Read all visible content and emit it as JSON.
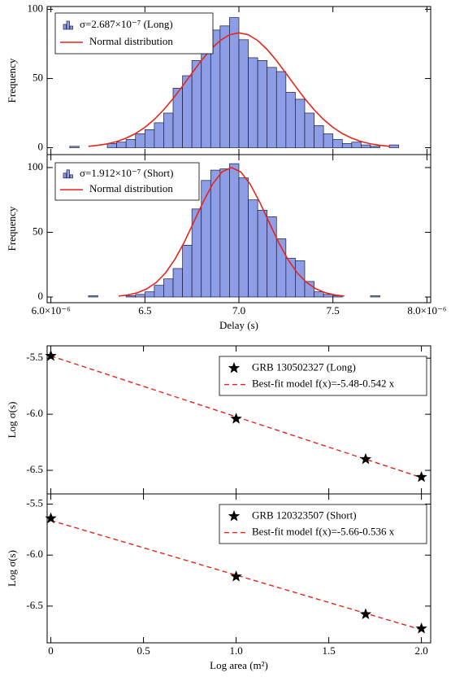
{
  "chart_data": [
    {
      "type": "histogram",
      "name": "σ=2.687×10⁻⁷ (Long)",
      "color": "#8e9ee6",
      "ylabel": "Frequency",
      "bins": [
        6.1e-06,
        6.15e-06,
        6.2e-06,
        6.25e-06,
        6.3e-06,
        6.35e-06,
        6.4e-06,
        6.45e-06,
        6.5e-06,
        6.55e-06,
        6.6e-06,
        6.65e-06,
        6.7e-06,
        6.75e-06,
        6.8e-06,
        6.85e-06,
        6.9e-06,
        6.95e-06,
        7e-06,
        7.05e-06,
        7.1e-06,
        7.15e-06,
        7.2e-06,
        7.25e-06,
        7.3e-06,
        7.35e-06,
        7.4e-06,
        7.45e-06,
        7.5e-06,
        7.55e-06,
        7.6e-06,
        7.65e-06,
        7.7e-06,
        7.75e-06,
        7.8e-06,
        7.85e-06,
        7.9e-06
      ],
      "values": [
        1,
        0,
        0,
        0,
        3,
        4,
        6,
        10,
        13,
        18,
        25,
        43,
        52,
        63,
        72,
        85,
        88,
        94,
        78,
        65,
        63,
        58,
        55,
        40,
        35,
        25,
        16,
        10,
        6,
        3,
        4,
        2,
        1,
        0,
        2,
        0
      ],
      "curve": {
        "name": "Normal distribution",
        "color": "#e3261b",
        "x": [
          6.2e-06,
          6.25e-06,
          6.3e-06,
          6.35e-06,
          6.4e-06,
          6.45e-06,
          6.5e-06,
          6.55e-06,
          6.6e-06,
          6.65e-06,
          6.7e-06,
          6.75e-06,
          6.8e-06,
          6.85e-06,
          6.9e-06,
          6.95e-06,
          7e-06,
          7.05e-06,
          7.1e-06,
          7.15e-06,
          7.2e-06,
          7.25e-06,
          7.3e-06,
          7.35e-06,
          7.4e-06,
          7.45e-06,
          7.5e-06,
          7.55e-06,
          7.6e-06,
          7.65e-06,
          7.7e-06,
          7.75e-06,
          7.8e-06
        ],
        "values": [
          1.0,
          1.7,
          2.8,
          4.4,
          6.9,
          10.2,
          14.7,
          20.4,
          27.4,
          35.5,
          44.5,
          53.8,
          62.9,
          71.0,
          77.4,
          81.6,
          83,
          81.6,
          77.4,
          71.0,
          62.9,
          53.8,
          44.5,
          35.5,
          27.4,
          20.4,
          14.7,
          10.2,
          6.9,
          4.4,
          2.8,
          1.7,
          1.0
        ]
      },
      "xlim": [
        5.98e-06,
        8.02e-06
      ],
      "xticks": [
        6e-06,
        6.5e-06,
        7e-06,
        7.5e-06,
        8e-06
      ],
      "ylim": [
        -5,
        102
      ],
      "yticks": [
        0,
        50,
        100
      ]
    },
    {
      "type": "histogram",
      "name": "σ=1.912×10⁻⁷ (Short)",
      "color": "#8e9ee6",
      "ylabel": "Frequency",
      "xlabel": "Delay (s)",
      "bins": [
        6.2e-06,
        6.25e-06,
        6.3e-06,
        6.35e-06,
        6.4e-06,
        6.45e-06,
        6.5e-06,
        6.55e-06,
        6.6e-06,
        6.65e-06,
        6.7e-06,
        6.75e-06,
        6.8e-06,
        6.85e-06,
        6.9e-06,
        6.95e-06,
        7e-06,
        7.05e-06,
        7.1e-06,
        7.15e-06,
        7.2e-06,
        7.25e-06,
        7.3e-06,
        7.35e-06,
        7.4e-06,
        7.45e-06,
        7.5e-06,
        7.55e-06,
        7.6e-06,
        7.65e-06,
        7.7e-06,
        7.75e-06,
        7.8e-06
      ],
      "values": [
        1,
        0,
        0,
        0,
        1,
        2,
        4,
        9,
        14,
        22,
        40,
        68,
        90,
        98,
        99,
        103,
        92,
        75,
        67,
        62,
        45,
        30,
        28,
        12,
        4,
        2,
        1,
        0,
        0,
        0,
        1,
        0
      ],
      "curve": {
        "name": "Normal distribution",
        "color": "#e3261b",
        "x": [
          6.36e-06,
          6.41e-06,
          6.46e-06,
          6.51e-06,
          6.56e-06,
          6.61e-06,
          6.66e-06,
          6.71e-06,
          6.76e-06,
          6.81e-06,
          6.86e-06,
          6.91e-06,
          6.96e-06,
          7.01e-06,
          7.06e-06,
          7.11e-06,
          7.16e-06,
          7.21e-06,
          7.26e-06,
          7.31e-06,
          7.36e-06,
          7.41e-06,
          7.46e-06,
          7.51e-06,
          7.56e-06
        ],
        "values": [
          0.7,
          1.6,
          3.3,
          6.3,
          11.2,
          18.7,
          29.2,
          42.5,
          57.9,
          73.5,
          87.2,
          96.6,
          100,
          96.6,
          87.2,
          73.5,
          57.9,
          42.5,
          29.2,
          18.7,
          11.2,
          6.3,
          3.3,
          1.6,
          0.7
        ]
      },
      "xlim": [
        5.98e-06,
        8.02e-06
      ],
      "xticks": [
        {
          "value": 6e-06,
          "label": "6.0×10⁻⁶"
        },
        {
          "value": 6.5e-06,
          "label": "6.5"
        },
        {
          "value": 7e-06,
          "label": "7.0"
        },
        {
          "value": 7.5e-06,
          "label": "7.5"
        },
        {
          "value": 8e-06,
          "label": "8.0×10⁻⁶"
        }
      ],
      "ylim": [
        -4.4,
        110
      ],
      "yticks": [
        0,
        50,
        100
      ]
    },
    {
      "type": "scatter",
      "name": "GRB 130502327 (Long)",
      "color": "#000000",
      "ylabel": "Log σ(s)",
      "x": [
        0,
        1,
        1.699,
        2
      ],
      "values": [
        -5.48,
        -6.04,
        -6.4,
        -6.56
      ],
      "fit": {
        "name": "Best-fit model f(x)=-5.48-0.542 x",
        "color": "#e3261b",
        "x": [
          0,
          2
        ],
        "values": [
          -5.48,
          -6.564
        ]
      },
      "xlim": [
        -0.02,
        2.05
      ],
      "xticks": [
        0,
        0.5,
        1,
        1.5,
        2
      ],
      "ylim": [
        -6.71,
        -5.39
      ],
      "yticks": [
        -5.5,
        {
          "value": -6,
          "label": "-6.0"
        },
        -6.5
      ]
    },
    {
      "type": "scatter",
      "name": "GRB 120323507 (Short)",
      "color": "#000000",
      "ylabel": "Log σ(s)",
      "xlabel": "Log area (m²)",
      "x": [
        0,
        1,
        1.699,
        2
      ],
      "values": [
        -5.64,
        -6.21,
        -6.58,
        -6.72
      ],
      "fit": {
        "name": "Best-fit model f(x)=-5.66-0.536 x",
        "color": "#e3261b",
        "x": [
          0,
          2
        ],
        "values": [
          -5.66,
          -6.732
        ]
      },
      "xlim": [
        -0.02,
        2.05
      ],
      "xticks": [
        0,
        0.5,
        {
          "value": 1,
          "label": "1.0"
        },
        1.5,
        {
          "value": 2,
          "label": "2.0"
        }
      ],
      "ylim": [
        -6.86,
        -5.4
      ],
      "yticks": [
        -5.5,
        {
          "value": -6,
          "label": "-6.0"
        },
        -6.5
      ]
    }
  ]
}
